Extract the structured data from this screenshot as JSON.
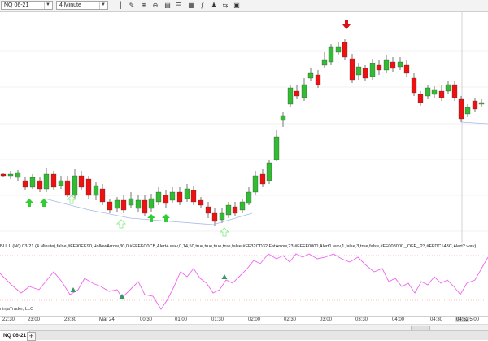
{
  "toolbar": {
    "instrument": "NQ 06-21",
    "interval": "4 Minute",
    "icons": [
      "bar-type-icon",
      "drawing-tools-icon",
      "zoom-in-icon",
      "zoom-out-icon",
      "template-icon",
      "properties-icon",
      "data-box-icon",
      "indicators-icon",
      "strategies-icon",
      "compare-icon",
      "screenshot-icon"
    ]
  },
  "indicator": {
    "label": "BULL (NQ 03-21 (4 Minute),false,#FF90EE90,HollowArrow,30,0,#FFFFC0CB,Alert4.wav,0,14,50,true,true,true,true,false,#FF32CD32,FatArrow,23,#FFFF0000,Alert1.wav,1,false,3,true,false,#FF008000,_OFF_,23,#FFDC143C,Alert2.wav)"
  },
  "copyright": "ninjaTrader, LLC",
  "colors": {
    "up": "#33bb33",
    "down": "#ee1111",
    "wick": "#555555",
    "oscillator": "#ee66ee",
    "trend": "#a8b8e8",
    "hollow_arrow": "#90ee90",
    "fat_arrow": "#32cd32",
    "down_arrow": "#dd1111",
    "signal_triangle": "#339966",
    "dotted_upper": "#ff66aa",
    "dotted_lower": "#ff8866"
  },
  "x_axis": {
    "labels": [
      "22:30",
      "23:00",
      "23:30",
      "Mar 24",
      "00:30",
      "01:00",
      "01:30",
      "02:00",
      "02:30",
      "03:00",
      "03:30",
      "04:00",
      "04:30",
      "05:00"
    ],
    "cursor_time": "04:52"
  },
  "tabs": {
    "active": "NQ 06-21",
    "add": "+"
  }
}
